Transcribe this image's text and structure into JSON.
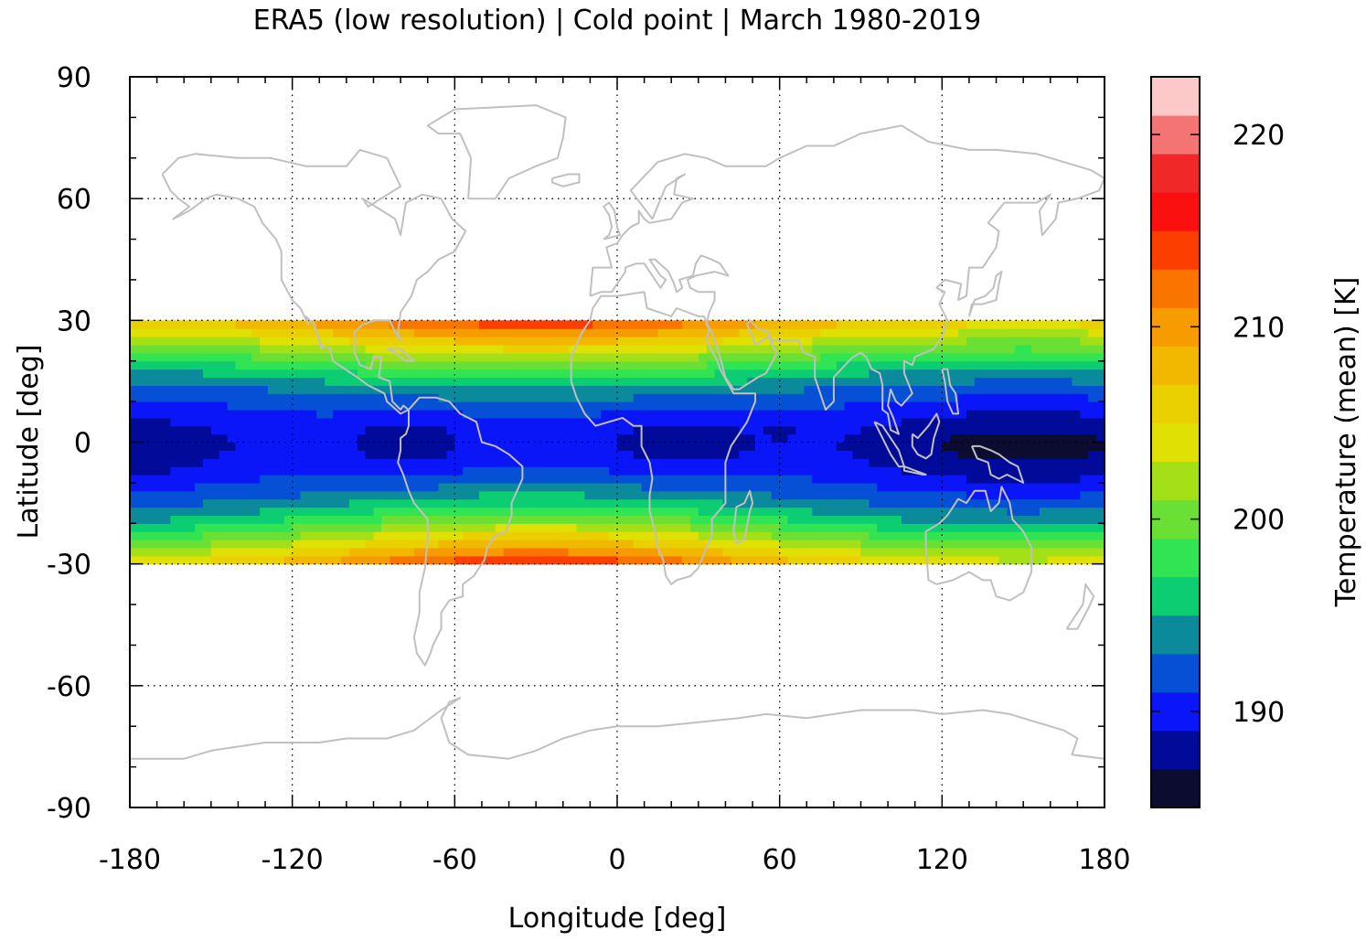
{
  "chart_data": {
    "type": "heatmap",
    "title": "ERA5 (low resolution) | Cold point | March 1980-2019",
    "xlabel": "Longitude [deg]",
    "ylabel": "Latitude [deg]",
    "colorbar_label": "Temperature (mean) [K]",
    "xlim": [
      -180,
      180
    ],
    "ylim": [
      -90,
      90
    ],
    "x_ticks": [
      "-180",
      "-120",
      "-60",
      "0",
      "60",
      "120",
      "180"
    ],
    "y_ticks": [
      "-90",
      "-60",
      "-30",
      "0",
      "30",
      "60",
      "90"
    ],
    "colorbar_ticks": [
      "190",
      "200",
      "210",
      "220"
    ],
    "colorbar_range": [
      185,
      223
    ],
    "colorbar_colors": [
      "#0c0c30",
      "#020a9a",
      "#0a16f8",
      "#0650d6",
      "#0a8a9a",
      "#0ccd72",
      "#30e454",
      "#6ae034",
      "#a4e018",
      "#e0e004",
      "#ead000",
      "#f2b800",
      "#f79c00",
      "#fa7400",
      "#fc3e00",
      "#fb1010",
      "#f02828",
      "#f47474",
      "#fcc8c8"
    ],
    "data_region_lat": [
      -30,
      30
    ],
    "grid": true,
    "overlay": "coastlines",
    "coastline_color": "#c0c0c0",
    "field_description_levels_K": {
      "minimum_core": 188,
      "tropics_typical": 190,
      "subtropics_edge": 203
    }
  }
}
